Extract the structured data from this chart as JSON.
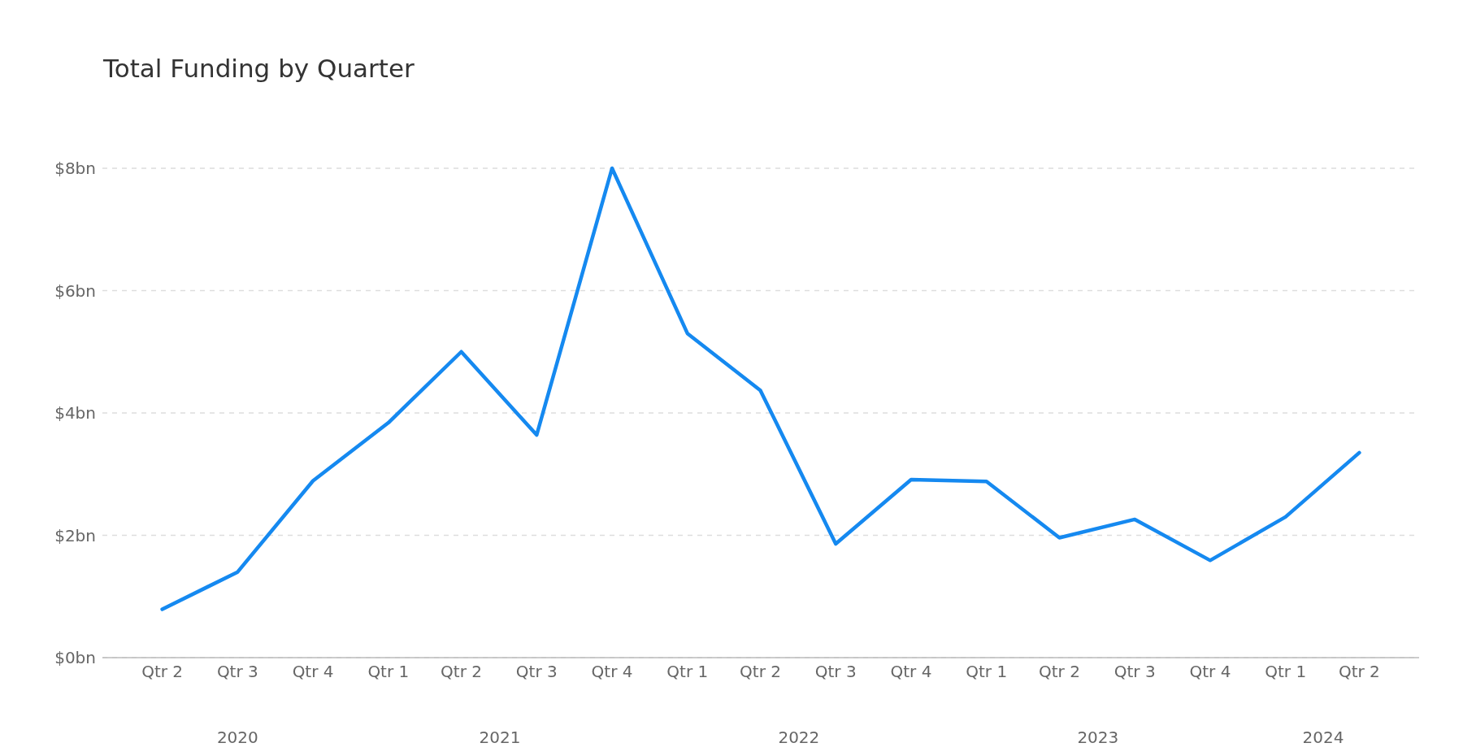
{
  "chart_data": {
    "type": "line",
    "title": "Total Funding by Quarter",
    "x": [
      "2020-05-15",
      "2020-08-15",
      "2020-11-15",
      "2021-02-15",
      "2021-05-15",
      "2021-08-15",
      "2021-11-15",
      "2022-02-15",
      "2022-05-15",
      "2022-08-15",
      "2022-11-15",
      "2023-02-15",
      "2023-05-15",
      "2023-08-15",
      "2023-11-15",
      "2024-02-15",
      "2024-05-15"
    ],
    "series": [
      {
        "color": "#1589f0",
        "values": [
          0.79,
          1.4,
          2.89,
          3.84,
          5.0,
          3.64,
          8.0,
          5.3,
          4.37,
          1.86,
          2.91,
          2.88,
          1.96,
          2.26,
          1.59,
          2.3,
          3.35
        ]
      }
    ],
    "xlim": [
      "2020-03-03",
      "2024-07-27"
    ],
    "xticks": [
      {
        "value": "2020-05-15",
        "label": "Qtr 2"
      },
      {
        "value": "2020-08-15",
        "label": "Qtr 3"
      },
      {
        "value": "2020-11-15",
        "label": "Qtr 4"
      },
      {
        "value": "2021-02-15",
        "label": "Qtr 1"
      },
      {
        "value": "2021-05-15",
        "label": "Qtr 2"
      },
      {
        "value": "2021-08-15",
        "label": "Qtr 3"
      },
      {
        "value": "2021-11-15",
        "label": "Qtr 4"
      },
      {
        "value": "2022-02-15",
        "label": "Qtr 1"
      },
      {
        "value": "2022-05-15",
        "label": "Qtr 2"
      },
      {
        "value": "2022-08-15",
        "label": "Qtr 3"
      },
      {
        "value": "2022-11-15",
        "label": "Qtr 4"
      },
      {
        "value": "2023-02-15",
        "label": "Qtr 1"
      },
      {
        "value": "2023-05-15",
        "label": "Qtr 2"
      },
      {
        "value": "2023-08-15",
        "label": "Qtr 3"
      },
      {
        "value": "2023-11-15",
        "label": "Qtr 4"
      },
      {
        "value": "2024-02-15",
        "label": "Qtr 1"
      },
      {
        "value": "2024-05-15",
        "label": "Qtr 2"
      }
    ],
    "x2lim": [
      "2020-03-03",
      "2024-07-27"
    ],
    "x2ticks": [
      {
        "value": "2020-08-15",
        "label": "2020"
      },
      {
        "value": "2021-07-01",
        "label": "2021"
      },
      {
        "value": "2022-07-01",
        "label": "2022"
      },
      {
        "value": "2023-07-01",
        "label": "2023"
      },
      {
        "value": "2024-04-01",
        "label": "2024"
      }
    ],
    "ylim": [
      0,
      8
    ],
    "yticks": [
      {
        "value": 0,
        "label": "$0bn"
      },
      {
        "value": 2,
        "label": "$2bn"
      },
      {
        "value": 4,
        "label": "$4bn"
      },
      {
        "value": 6,
        "label": "$6bn"
      },
      {
        "value": 8,
        "label": "$8bn"
      }
    ],
    "grid": "y"
  }
}
